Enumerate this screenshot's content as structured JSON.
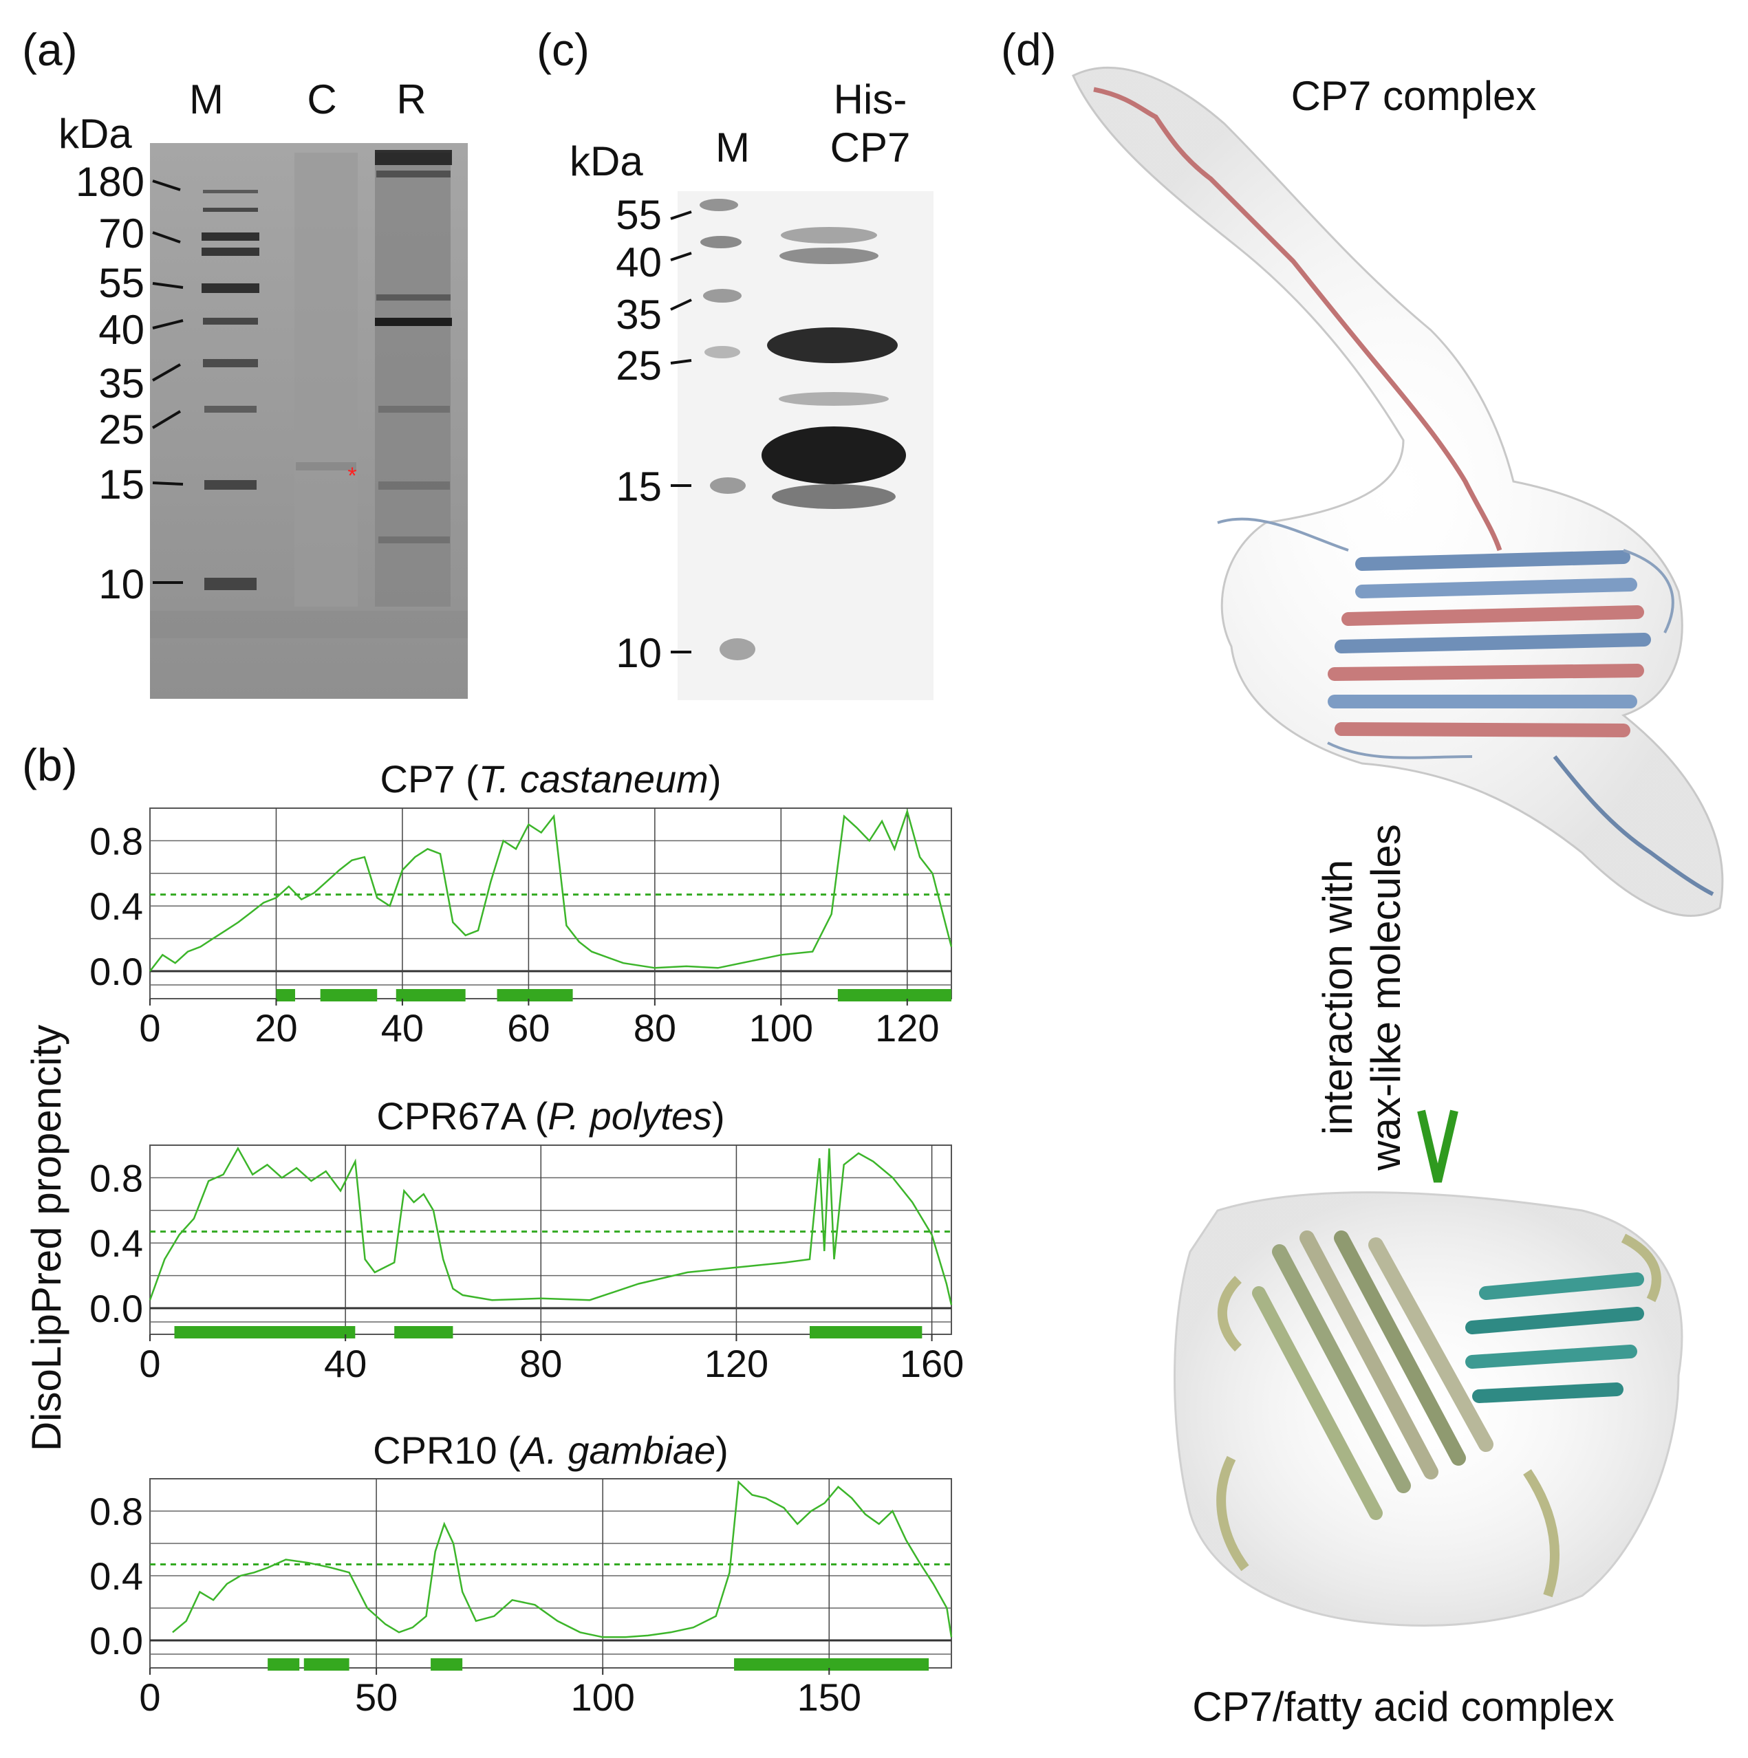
{
  "panels": {
    "a": {
      "label": "(a)",
      "unit": "kDa",
      "lanes": [
        "M",
        "C",
        "R"
      ],
      "markers": [
        "180",
        "70",
        "55",
        "40",
        "35",
        "25",
        "15",
        "10"
      ],
      "asterisk": "*"
    },
    "b": {
      "label": "(b)",
      "ylabel": "DisoLipPred propencity"
    },
    "c": {
      "label": "(c)",
      "unit": "kDa",
      "lanes": [
        "M",
        "His-",
        "CP7"
      ],
      "markers": [
        "55",
        "40",
        "35",
        "25",
        "15",
        "10"
      ]
    },
    "d": {
      "label": "(d)",
      "top_title": "CP7 complex",
      "arrow_text_1": "interaction with",
      "arrow_text_2": "wax-like molecules",
      "bottom_title": "CP7/fatty acid complex"
    }
  },
  "chart_data": [
    {
      "type": "line",
      "title_pre": "CP7 (",
      "title_species": "T. castaneum",
      "title_post": ")",
      "xlim": [
        0,
        127
      ],
      "ylim": [
        -0.2,
        1.0
      ],
      "xticks": [
        0,
        20,
        40,
        60,
        80,
        100,
        120
      ],
      "yticks": [
        0.0,
        0.4,
        0.8
      ],
      "threshold": 0.47,
      "x": [
        0,
        2,
        4,
        6,
        8,
        10,
        12,
        14,
        16,
        18,
        20,
        22,
        24,
        26,
        28,
        30,
        32,
        34,
        36,
        38,
        40,
        42,
        44,
        46,
        48,
        50,
        52,
        54,
        56,
        58,
        60,
        62,
        64,
        66,
        68,
        70,
        75,
        80,
        85,
        90,
        95,
        100,
        105,
        108,
        110,
        112,
        114,
        116,
        118,
        120,
        122,
        124,
        126,
        127
      ],
      "y": [
        0.0,
        0.1,
        0.05,
        0.12,
        0.15,
        0.2,
        0.25,
        0.3,
        0.36,
        0.42,
        0.45,
        0.52,
        0.44,
        0.48,
        0.55,
        0.62,
        0.68,
        0.7,
        0.45,
        0.4,
        0.62,
        0.7,
        0.75,
        0.72,
        0.3,
        0.22,
        0.25,
        0.55,
        0.8,
        0.75,
        0.9,
        0.85,
        0.95,
        0.28,
        0.18,
        0.12,
        0.05,
        0.02,
        0.03,
        0.02,
        0.06,
        0.1,
        0.12,
        0.35,
        0.95,
        0.88,
        0.8,
        0.92,
        0.75,
        0.98,
        0.7,
        0.6,
        0.3,
        0.15
      ],
      "disordered_regions": [
        [
          20,
          23
        ],
        [
          27,
          36
        ],
        [
          39,
          50
        ],
        [
          55,
          67
        ],
        [
          109,
          127
        ]
      ]
    },
    {
      "type": "line",
      "title_pre": "CPR67A (",
      "title_species": "P. polytes",
      "title_post": ")",
      "xlim": [
        0,
        164
      ],
      "ylim": [
        -0.2,
        1.0
      ],
      "xticks": [
        0,
        40,
        80,
        120,
        160
      ],
      "yticks": [
        0.0,
        0.4,
        0.8
      ],
      "threshold": 0.47,
      "x": [
        0,
        3,
        6,
        9,
        12,
        15,
        18,
        21,
        24,
        27,
        30,
        33,
        36,
        39,
        42,
        44,
        46,
        48,
        50,
        52,
        54,
        56,
        58,
        60,
        62,
        64,
        70,
        80,
        90,
        100,
        110,
        120,
        130,
        135,
        137,
        138,
        139,
        140,
        142,
        145,
        148,
        152,
        156,
        160,
        163,
        164
      ],
      "y": [
        0.05,
        0.3,
        0.45,
        0.55,
        0.78,
        0.82,
        0.98,
        0.82,
        0.88,
        0.8,
        0.86,
        0.78,
        0.84,
        0.72,
        0.9,
        0.3,
        0.22,
        0.25,
        0.28,
        0.72,
        0.65,
        0.7,
        0.6,
        0.3,
        0.12,
        0.08,
        0.05,
        0.06,
        0.05,
        0.15,
        0.22,
        0.25,
        0.28,
        0.3,
        0.92,
        0.35,
        0.98,
        0.3,
        0.88,
        0.95,
        0.9,
        0.8,
        0.65,
        0.45,
        0.15,
        0.02
      ],
      "disordered_regions": [
        [
          5,
          42
        ],
        [
          50,
          62
        ],
        [
          135,
          158
        ]
      ]
    },
    {
      "type": "line",
      "title_pre": "CPR10 (",
      "title_species": "A. gambiae",
      "title_post": ")",
      "xlim": [
        0,
        177
      ],
      "ylim": [
        -0.2,
        1.0
      ],
      "xticks": [
        0,
        50,
        100,
        150
      ],
      "yticks": [
        0.0,
        0.4,
        0.8
      ],
      "threshold": 0.47,
      "x": [
        5,
        8,
        11,
        14,
        17,
        20,
        23,
        26,
        30,
        35,
        40,
        44,
        48,
        52,
        55,
        58,
        61,
        63,
        65,
        67,
        69,
        72,
        76,
        80,
        85,
        90,
        95,
        100,
        105,
        110,
        115,
        120,
        125,
        128,
        130,
        133,
        136,
        140,
        143,
        146,
        149,
        152,
        155,
        158,
        161,
        164,
        167,
        170,
        173,
        176,
        177
      ],
      "y": [
        0.05,
        0.12,
        0.3,
        0.25,
        0.35,
        0.4,
        0.42,
        0.45,
        0.5,
        0.48,
        0.45,
        0.42,
        0.2,
        0.1,
        0.05,
        0.08,
        0.15,
        0.55,
        0.72,
        0.6,
        0.3,
        0.12,
        0.15,
        0.25,
        0.22,
        0.12,
        0.05,
        0.02,
        0.02,
        0.03,
        0.05,
        0.08,
        0.15,
        0.42,
        0.98,
        0.9,
        0.88,
        0.82,
        0.72,
        0.8,
        0.85,
        0.95,
        0.88,
        0.78,
        0.72,
        0.8,
        0.62,
        0.48,
        0.35,
        0.2,
        0.02
      ],
      "disordered_regions": [
        [
          26,
          33
        ],
        [
          34,
          44
        ],
        [
          62,
          69
        ],
        [
          129,
          172
        ]
      ]
    }
  ]
}
